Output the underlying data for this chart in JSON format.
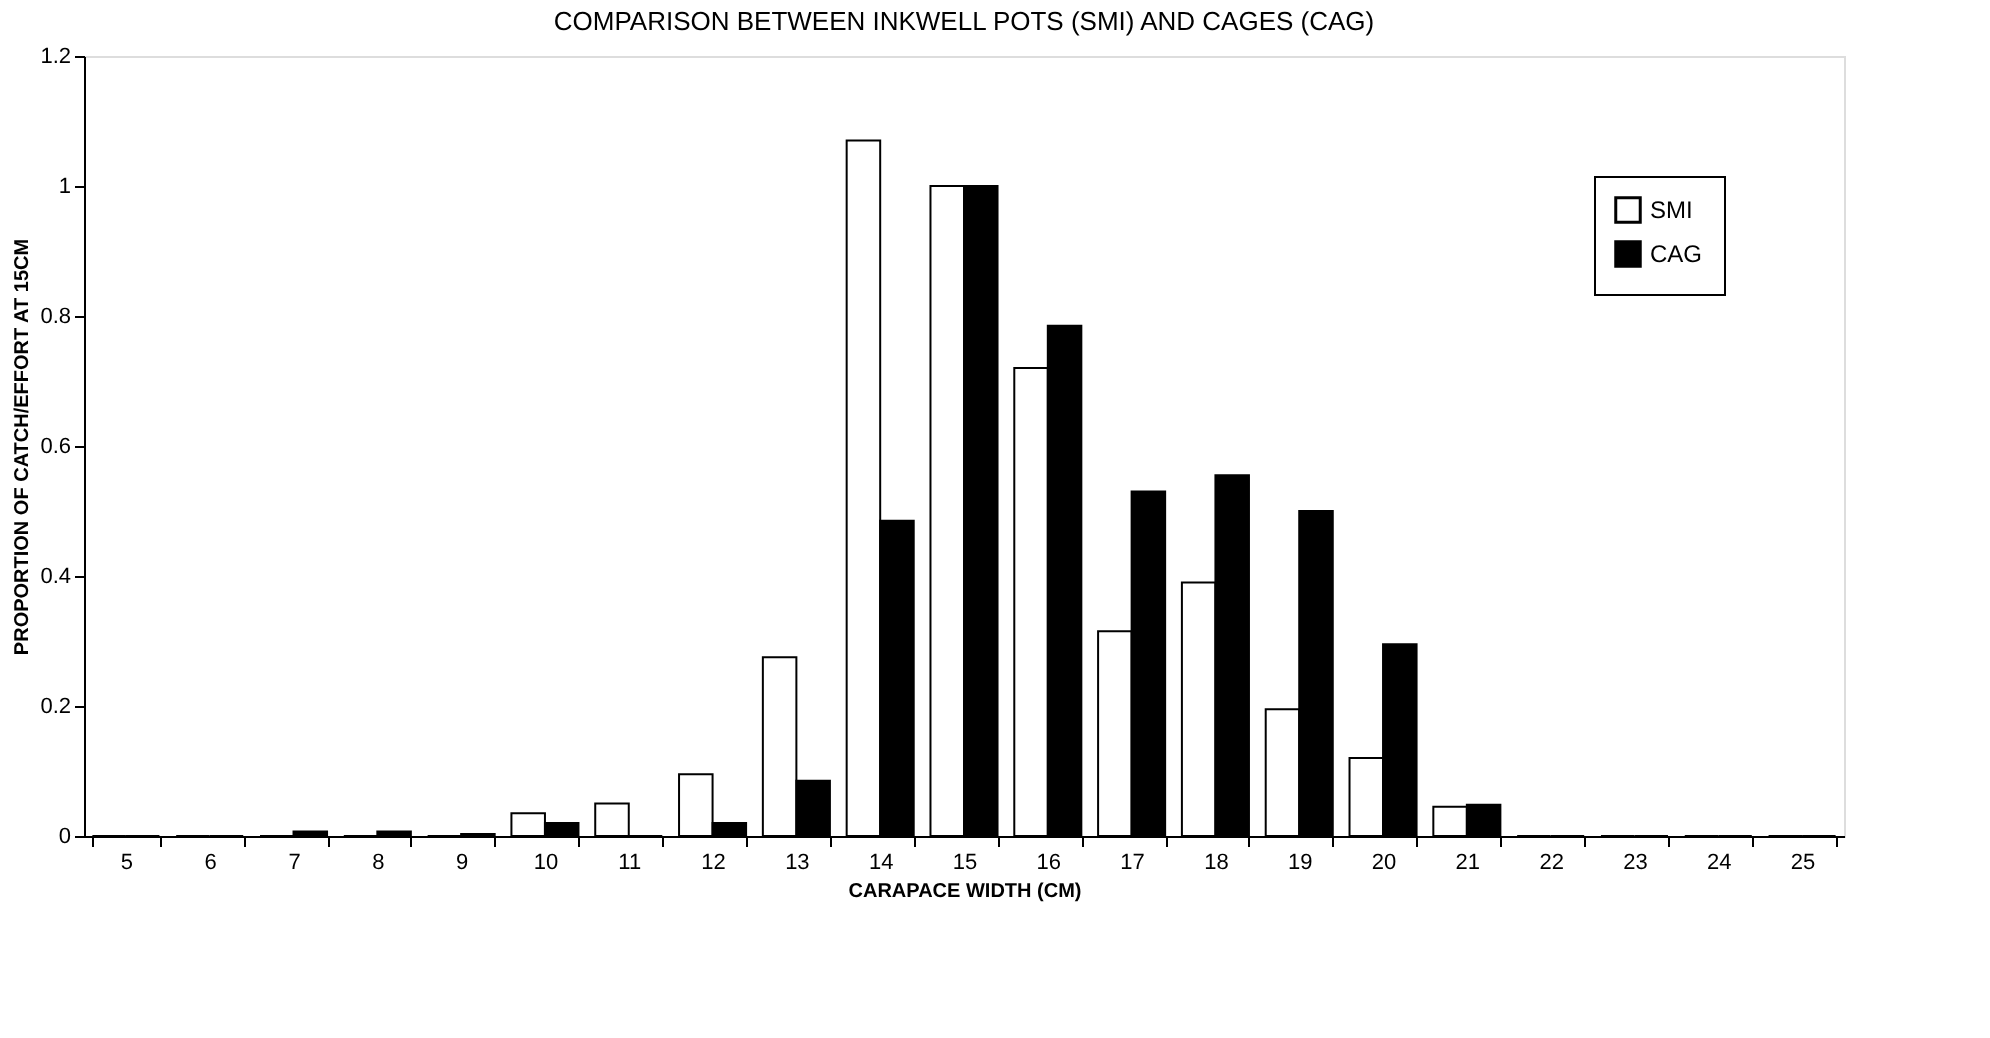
{
  "chart_data": {
    "type": "bar",
    "title": "COMPARISON BETWEEN INKWELL POTS (SMI) AND CAGES (CAG)",
    "xlabel": "CARAPACE WIDTH (CM)",
    "ylabel": "PROPORTION OF CATCH/EFFORT AT 15CM",
    "categories": [
      "5",
      "6",
      "7",
      "8",
      "9",
      "10",
      "11",
      "12",
      "13",
      "14",
      "15",
      "16",
      "17",
      "18",
      "19",
      "20",
      "21",
      "22",
      "23",
      "24",
      "25"
    ],
    "series": [
      {
        "name": "SMI",
        "color": "#ffffff",
        "values": [
          0,
          0,
          0,
          0,
          0,
          0.035,
          0.05,
          0.095,
          0.275,
          1.07,
          1.0,
          0.72,
          0.315,
          0.39,
          0.195,
          0.12,
          0.045,
          0,
          0,
          0,
          0
        ]
      },
      {
        "name": "CAG",
        "color": "#000000",
        "values": [
          0,
          0,
          0.007,
          0.007,
          0.003,
          0.02,
          0,
          0.02,
          0.085,
          0.485,
          1.0,
          0.785,
          0.53,
          0.555,
          0.5,
          0.295,
          0.048,
          0,
          0,
          0,
          0
        ]
      }
    ],
    "ylim": [
      0,
      1.2
    ],
    "yticks": [
      0,
      0.2,
      0.4,
      0.6,
      0.8,
      1,
      1.2
    ],
    "grid": false,
    "legend": "top right"
  }
}
